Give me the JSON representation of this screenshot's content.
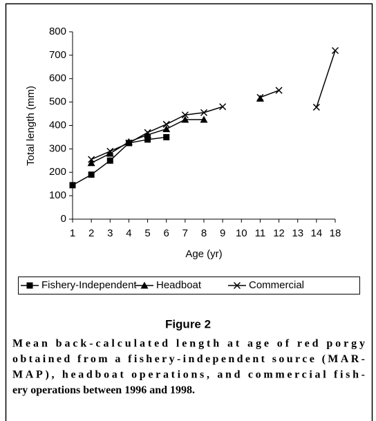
{
  "chart_data": {
    "type": "line",
    "xlabel": "Age (yr)",
    "ylabel": "Total length (mm)",
    "categories": [
      "1",
      "2",
      "3",
      "4",
      "5",
      "6",
      "7",
      "8",
      "9",
      "10",
      "11",
      "12",
      "13",
      "14",
      "18"
    ],
    "ylim": [
      0,
      800
    ],
    "yticks": [
      0,
      100,
      200,
      300,
      400,
      500,
      600,
      700,
      800
    ],
    "series": [
      {
        "name": "Fishery-Independent",
        "color": "#000000",
        "marker": "square",
        "values": [
          145,
          190,
          250,
          325,
          340,
          350,
          null,
          null,
          null,
          null,
          null,
          null,
          null,
          null,
          null
        ]
      },
      {
        "name": "Headboat",
        "color": "#000000",
        "marker": "triangle",
        "values": [
          null,
          240,
          280,
          330,
          360,
          385,
          425,
          425,
          null,
          null,
          515,
          null,
          null,
          null,
          null
        ]
      },
      {
        "name": "Commercial",
        "color": "#000000",
        "marker": "x",
        "values": [
          null,
          255,
          290,
          325,
          370,
          405,
          445,
          455,
          480,
          null,
          520,
          550,
          null,
          478,
          720
        ]
      }
    ]
  },
  "figure": {
    "label": "Figure 2",
    "caption_lines": [
      "Mean back-calculated length at age of red porgy",
      "obtained from a fishery-independent source (MAR-",
      "MAP), headboat operations, and commercial fish-",
      "ery operations between 1996 and 1998."
    ]
  }
}
